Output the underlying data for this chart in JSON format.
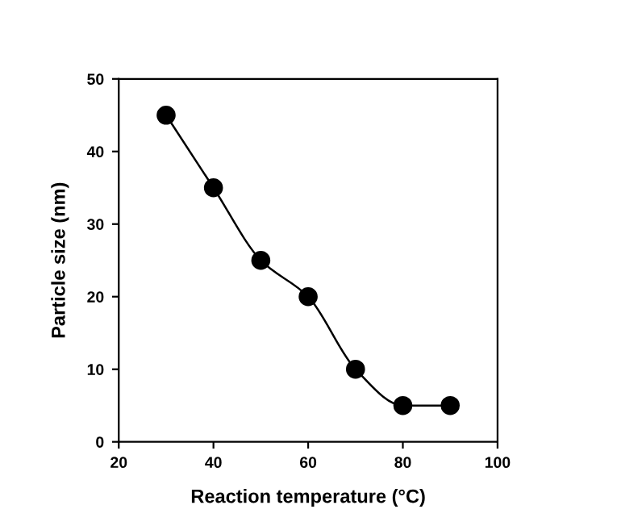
{
  "chart_data": {
    "type": "line",
    "xlabel": "Reaction temperature (°C)",
    "ylabel": "Particle size (nm)",
    "x": [
      30,
      40,
      50,
      60,
      70,
      80,
      90
    ],
    "series": [
      {
        "color": "#000000",
        "values": [
          45,
          35,
          25,
          20,
          10,
          5,
          5
        ]
      }
    ],
    "xlim": [
      20,
      100
    ],
    "xticks": [
      20,
      40,
      60,
      80,
      100
    ],
    "ylim": [
      0,
      50
    ],
    "yticks": [
      0,
      10,
      20,
      30,
      40,
      50
    ],
    "marker": "circle",
    "line_style": "solid",
    "grid": false
  }
}
